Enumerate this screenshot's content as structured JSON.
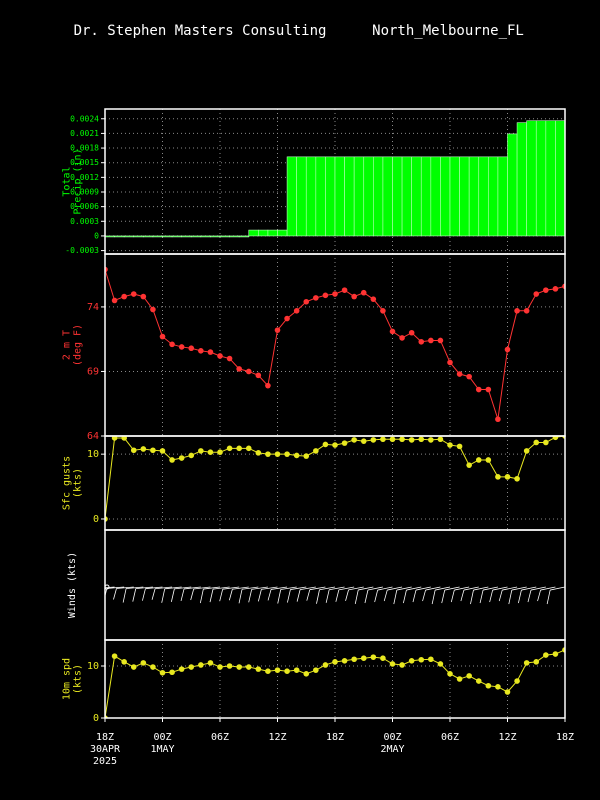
{
  "title": "Dr. Stephen Masters Consulting",
  "location": "North_Melbourne_FL",
  "time_axis": {
    "xlim": [
      0,
      48
    ],
    "xticks": [
      {
        "value": 0,
        "label": "18Z",
        "sublabels": [
          "30APR",
          "2025"
        ]
      },
      {
        "value": 6,
        "label": "00Z",
        "sublabels": [
          "1MAY"
        ]
      },
      {
        "value": 12,
        "label": "06Z"
      },
      {
        "value": 18,
        "label": "12Z"
      },
      {
        "value": 24,
        "label": "18Z"
      },
      {
        "value": 30,
        "label": "00Z",
        "sublabels": [
          "2MAY"
        ]
      },
      {
        "value": 36,
        "label": "06Z"
      },
      {
        "value": 42,
        "label": "12Z"
      },
      {
        "value": 48,
        "label": "18Z"
      }
    ]
  },
  "chart_data": [
    {
      "type": "bar",
      "ylabel": [
        "Total",
        "Precip (in)"
      ],
      "color": "#00ff00",
      "x": [
        0,
        1,
        2,
        3,
        4,
        5,
        6,
        7,
        8,
        9,
        10,
        11,
        12,
        13,
        14,
        15,
        16,
        17,
        18,
        19,
        20,
        21,
        22,
        23,
        24,
        25,
        26,
        27,
        28,
        29,
        30,
        31,
        32,
        33,
        34,
        35,
        36,
        37,
        38,
        39,
        40,
        41,
        42,
        43,
        44,
        45,
        46,
        47
      ],
      "values": [
        0,
        0,
        0,
        0,
        0,
        0,
        0,
        0,
        0,
        0,
        0,
        0,
        0,
        0,
        0,
        0.00012,
        0.00012,
        0.00012,
        0.00012,
        0.00162,
        0.00162,
        0.00162,
        0.00162,
        0.00162,
        0.00162,
        0.00162,
        0.00162,
        0.00162,
        0.00162,
        0.00162,
        0.00162,
        0.00162,
        0.00162,
        0.00162,
        0.00162,
        0.00162,
        0.00162,
        0.00162,
        0.00162,
        0.00162,
        0.00162,
        0.00162,
        0.00209,
        0.00232,
        0.00236,
        0.00236,
        0.00236,
        0.00236
      ],
      "ylim": [
        -0.00037,
        0.0026
      ],
      "yticks": [
        -0.0003,
        0,
        0.0003,
        0.0006,
        0.0009,
        0.0012,
        0.0015,
        0.0018,
        0.0021,
        0.0024
      ],
      "grid": true
    },
    {
      "type": "line",
      "ylabel": [
        "2 m T",
        "(deg F)"
      ],
      "color": "#ff3333",
      "x": [
        0,
        1,
        2,
        3,
        4,
        5,
        6,
        7,
        8,
        9,
        10,
        11,
        12,
        13,
        14,
        15,
        16,
        17,
        18,
        19,
        20,
        21,
        22,
        23,
        24,
        25,
        26,
        27,
        28,
        29,
        30,
        31,
        32,
        33,
        34,
        35,
        36,
        37,
        38,
        39,
        40,
        41,
        42,
        43,
        44,
        45,
        46,
        47,
        48
      ],
      "values": [
        76.9,
        74.5,
        74.8,
        75.0,
        74.8,
        73.8,
        71.7,
        71.1,
        70.9,
        70.8,
        70.6,
        70.5,
        70.2,
        70.0,
        69.2,
        69.0,
        68.7,
        67.9,
        72.2,
        73.1,
        73.7,
        74.4,
        74.7,
        74.9,
        75.0,
        75.3,
        74.8,
        75.1,
        74.6,
        73.7,
        72.1,
        71.6,
        72.0,
        71.3,
        71.4,
        71.4,
        69.7,
        68.8,
        68.6,
        67.6,
        67.6,
        65.3,
        70.7,
        73.7,
        73.7,
        75.0,
        75.3,
        75.4,
        75.6
      ],
      "ylim": [
        64,
        78.1
      ],
      "yticks": [
        64,
        69,
        74
      ],
      "grid": true
    },
    {
      "type": "line",
      "ylabel": [
        "Sfc gusts",
        "(kts)"
      ],
      "color": "#e8e820",
      "x": [
        0,
        1,
        2,
        3,
        4,
        5,
        6,
        7,
        8,
        9,
        10,
        11,
        12,
        13,
        14,
        15,
        16,
        17,
        18,
        19,
        20,
        21,
        22,
        23,
        24,
        25,
        26,
        27,
        28,
        29,
        30,
        31,
        32,
        33,
        34,
        35,
        36,
        37,
        38,
        39,
        40,
        41,
        42,
        43,
        44,
        45,
        46,
        47,
        48
      ],
      "values": [
        0,
        12.5,
        12.5,
        10.6,
        10.8,
        10.6,
        10.5,
        9.1,
        9.4,
        9.8,
        10.5,
        10.3,
        10.3,
        10.9,
        10.9,
        10.9,
        10.2,
        10.0,
        10.0,
        10.0,
        9.8,
        9.7,
        10.5,
        11.5,
        11.4,
        11.7,
        12.2,
        12.0,
        12.2,
        12.3,
        12.3,
        12.3,
        12.2,
        12.3,
        12.2,
        12.3,
        11.4,
        11.2,
        8.3,
        9.1,
        9.1,
        6.5,
        6.5,
        6.2,
        10.5,
        11.8,
        11.8,
        12.6,
        12.8
      ],
      "ylim": [
        -1.7,
        12.8
      ],
      "yticks": [
        0,
        10
      ],
      "grid": true
    },
    {
      "type": "barbs",
      "ylabel": [
        "Winds (kts)"
      ],
      "color": "#ffffff"
    },
    {
      "type": "line",
      "ylabel": [
        "10m spd",
        "(kts)"
      ],
      "color": "#e8e820",
      "x": [
        0,
        1,
        2,
        3,
        4,
        5,
        6,
        7,
        8,
        9,
        10,
        11,
        12,
        13,
        14,
        15,
        16,
        17,
        18,
        19,
        20,
        21,
        22,
        23,
        24,
        25,
        26,
        27,
        28,
        29,
        30,
        31,
        32,
        33,
        34,
        35,
        36,
        37,
        38,
        39,
        40,
        41,
        42,
        43,
        44,
        45,
        46,
        47,
        48
      ],
      "values": [
        0,
        11.9,
        10.8,
        9.8,
        10.6,
        9.8,
        8.7,
        8.8,
        9.4,
        9.8,
        10.2,
        10.6,
        9.8,
        10.0,
        9.8,
        9.8,
        9.4,
        9.0,
        9.2,
        9.0,
        9.2,
        8.5,
        9.2,
        10.2,
        10.8,
        11.0,
        11.3,
        11.5,
        11.7,
        11.5,
        10.4,
        10.2,
        11.0,
        11.2,
        11.3,
        10.4,
        8.5,
        7.5,
        8.1,
        7.1,
        6.2,
        6.0,
        5.0,
        7.1,
        10.6,
        10.8,
        12.1,
        12.3,
        13.1
      ],
      "ylim": [
        0,
        15
      ],
      "yticks": [
        0,
        10
      ],
      "grid": true
    }
  ]
}
